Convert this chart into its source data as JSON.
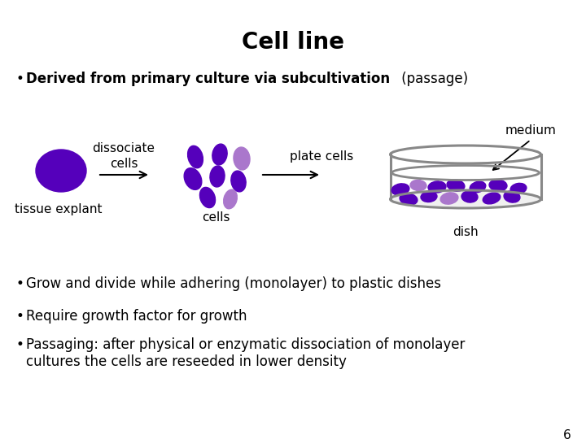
{
  "title": "Cell line",
  "bullet1_bold": "Derived from primary culture via subcultivation",
  "bullet1_normal": " (passage)",
  "bullet2": "Grow and divide while adhering (monolayer) to plastic dishes",
  "bullet3": "Require growth factor for growth",
  "bullet4": "Passaging: after physical or enzymatic dissociation of monolayer\ncultures the cells are reseeded in lower density",
  "page_num": "6",
  "label_dissociate": "dissociate\ncells",
  "label_plate": "plate cells",
  "label_tissue": "tissue explant",
  "label_cells": "cells",
  "label_medium": "medium",
  "label_dish": "dish",
  "cell_color_dark": "#5500bb",
  "cell_color_light": "#aa77cc",
  "dish_color": "#888888",
  "bg_color": "#ffffff",
  "text_color": "#000000",
  "arrow_color": "#000000",
  "title_fontsize": 20,
  "body_fontsize": 12,
  "label_fontsize": 11
}
